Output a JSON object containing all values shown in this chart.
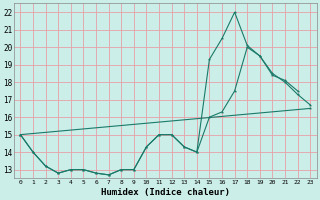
{
  "xlabel": "Humidex (Indice chaleur)",
  "bg_color": "#cceee8",
  "grid_color": "#e8a0a8",
  "line_color": "#1a7a6a",
  "xlim": [
    -0.5,
    23.5
  ],
  "ylim": [
    12.5,
    22.5
  ],
  "yticks": [
    13,
    14,
    15,
    16,
    17,
    18,
    19,
    20,
    21,
    22
  ],
  "xticks": [
    0,
    1,
    2,
    3,
    4,
    5,
    6,
    7,
    8,
    9,
    10,
    11,
    12,
    13,
    14,
    15,
    16,
    17,
    18,
    19,
    20,
    21,
    22,
    23
  ],
  "series1_x": [
    0,
    1,
    2,
    3,
    4,
    5,
    6,
    7,
    8,
    9,
    10,
    11,
    12,
    13,
    14,
    15,
    16,
    17,
    18,
    19,
    20,
    21,
    22
  ],
  "series1_y": [
    15.0,
    14.0,
    13.2,
    12.8,
    13.0,
    13.0,
    12.8,
    12.7,
    13.0,
    13.0,
    14.3,
    15.0,
    15.0,
    14.3,
    14.0,
    19.3,
    20.5,
    22.0,
    20.1,
    19.5,
    18.4,
    18.1,
    17.5
  ],
  "series2_x": [
    0,
    1,
    2,
    3,
    4,
    5,
    6,
    7,
    8,
    9,
    10,
    11,
    12,
    13,
    14,
    15,
    16,
    17,
    18,
    19,
    20,
    21,
    22,
    23
  ],
  "series2_y": [
    15.0,
    14.0,
    13.2,
    12.8,
    13.0,
    13.0,
    12.8,
    12.7,
    13.0,
    13.0,
    14.3,
    15.0,
    15.0,
    14.3,
    14.0,
    16.0,
    16.3,
    17.5,
    20.0,
    19.5,
    18.5,
    18.0,
    17.3,
    16.7
  ],
  "series3_x": [
    0,
    23
  ],
  "series3_y": [
    15.0,
    16.5
  ]
}
